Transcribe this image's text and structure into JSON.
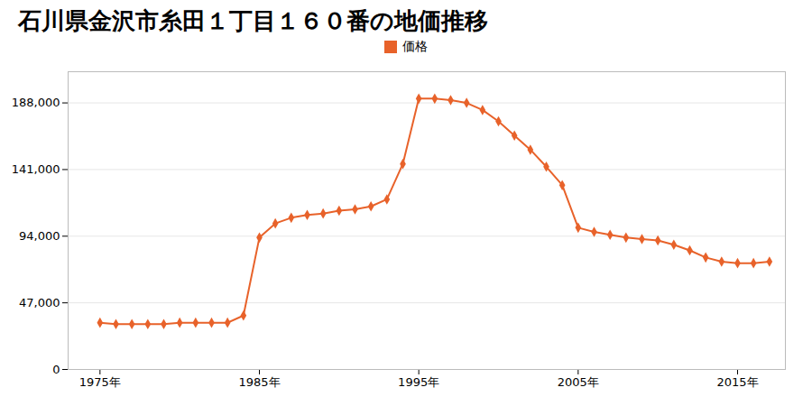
{
  "chart_data": {
    "type": "line",
    "title": "石川県金沢市糸田１丁目１６０番の地価推移",
    "x": [
      1975,
      1976,
      1977,
      1978,
      1979,
      1980,
      1981,
      1982,
      1983,
      1984,
      1985,
      1986,
      1987,
      1988,
      1989,
      1990,
      1991,
      1992,
      1993,
      1994,
      1995,
      1996,
      1997,
      1998,
      1999,
      2000,
      2001,
      2002,
      2003,
      2004,
      2005,
      2006,
      2007,
      2008,
      2009,
      2010,
      2011,
      2012,
      2013,
      2014,
      2015,
      2016,
      2017
    ],
    "series": [
      {
        "name": "価格",
        "color": "#e8622a",
        "marker": "diamond",
        "values": [
          33000,
          32000,
          32000,
          32000,
          32000,
          33000,
          33000,
          33000,
          33000,
          38000,
          93000,
          103000,
          107000,
          109000,
          110000,
          112000,
          113000,
          115000,
          120000,
          145000,
          191000,
          191000,
          190000,
          188000,
          183000,
          175000,
          165000,
          155000,
          143000,
          130000,
          100000,
          97000,
          95000,
          93000,
          92000,
          91000,
          88000,
          84000,
          79000,
          76000,
          75000,
          75000,
          76000
        ]
      }
    ],
    "xlim": [
      1973,
      2018
    ],
    "xticks": [
      {
        "value": 1975,
        "label": "1975年"
      },
      {
        "value": 1985,
        "label": "1985年"
      },
      {
        "value": 1995,
        "label": "1995年"
      },
      {
        "value": 2005,
        "label": "2005年"
      },
      {
        "value": 2015,
        "label": "2015年"
      }
    ],
    "ylim": [
      0,
      210000
    ],
    "yticks": [
      0,
      {
        "value": 47000,
        "label": "47,000"
      },
      {
        "value": 94000,
        "label": "94,000"
      },
      {
        "value": 141000,
        "label": "141,000"
      },
      {
        "value": 188000,
        "label": "188,000"
      }
    ],
    "grid": true,
    "legend": "top"
  }
}
